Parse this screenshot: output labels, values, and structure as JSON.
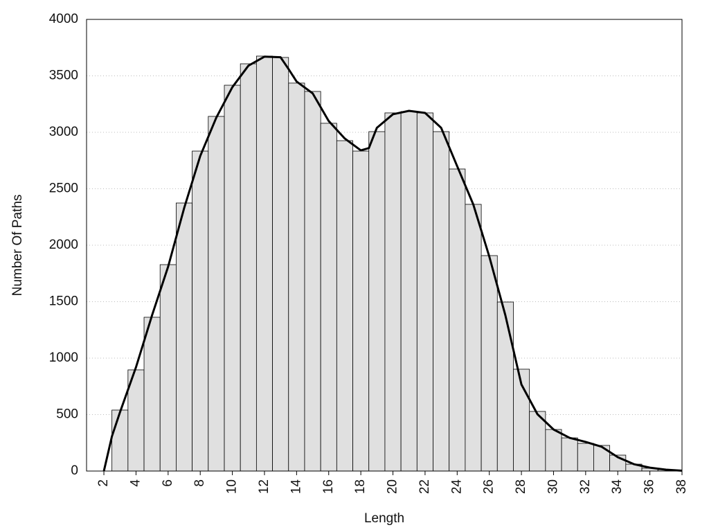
{
  "chart_data": {
    "type": "histogram",
    "x_label": "Length",
    "y_label": "Number Of Paths",
    "bins": [
      2.5,
      3.5,
      4.5,
      5.5,
      6.5,
      7.5,
      8.5,
      9.5,
      10.5,
      11.5,
      12.5,
      13.5,
      14.5,
      15.5,
      16.5,
      17.5,
      18.5,
      19.5,
      20.5,
      21.5,
      22.5,
      23.5,
      24.5,
      25.5,
      26.5,
      27.5,
      28.5,
      29.5,
      30.5,
      31.5,
      32.5,
      33.5,
      34.5,
      35.5,
      36.5,
      37.5
    ],
    "values": [
      540,
      896,
      1362,
      1828,
      2374,
      2834,
      3141,
      3417,
      3607,
      3675,
      3663,
      3436,
      3362,
      3080,
      2926,
      2834,
      3006,
      3172,
      3184,
      3172,
      3006,
      2675,
      2362,
      1908,
      1497,
      902,
      528,
      368,
      294,
      245,
      227,
      141,
      61,
      25,
      12
    ],
    "color": "#e0e0e0",
    "curve": {
      "type": "line",
      "color": "#000000",
      "x": [
        2,
        2.5,
        3,
        4,
        5,
        6,
        7,
        8,
        9,
        10,
        11,
        12,
        13,
        13.5,
        14,
        15,
        16,
        17,
        18,
        18.5,
        19,
        20,
        21,
        22,
        23,
        24,
        25,
        26,
        27,
        28,
        29,
        30,
        31,
        32,
        33,
        34,
        35,
        36,
        37,
        38
      ],
      "values": [
        0,
        307,
        520,
        920,
        1380,
        1810,
        2330,
        2790,
        3130,
        3400,
        3590,
        3670,
        3665,
        3560,
        3450,
        3345,
        3100,
        2945,
        2840,
        2860,
        3040,
        3160,
        3190,
        3172,
        3040,
        2700,
        2362,
        1900,
        1380,
        767,
        503,
        368,
        294,
        258,
        215,
        123,
        61,
        30,
        12,
        3
      ]
    },
    "xlim": [
      0.92,
      38
    ],
    "xticks": [
      2,
      4,
      6,
      8,
      10,
      12,
      14,
      16,
      18,
      20,
      22,
      24,
      26,
      28,
      30,
      32,
      34,
      36,
      38
    ],
    "ylim": [
      0,
      4000
    ],
    "yticks": [
      0,
      500,
      1000,
      1500,
      2000,
      2500,
      3000,
      3500,
      4000
    ],
    "grid": true
  }
}
